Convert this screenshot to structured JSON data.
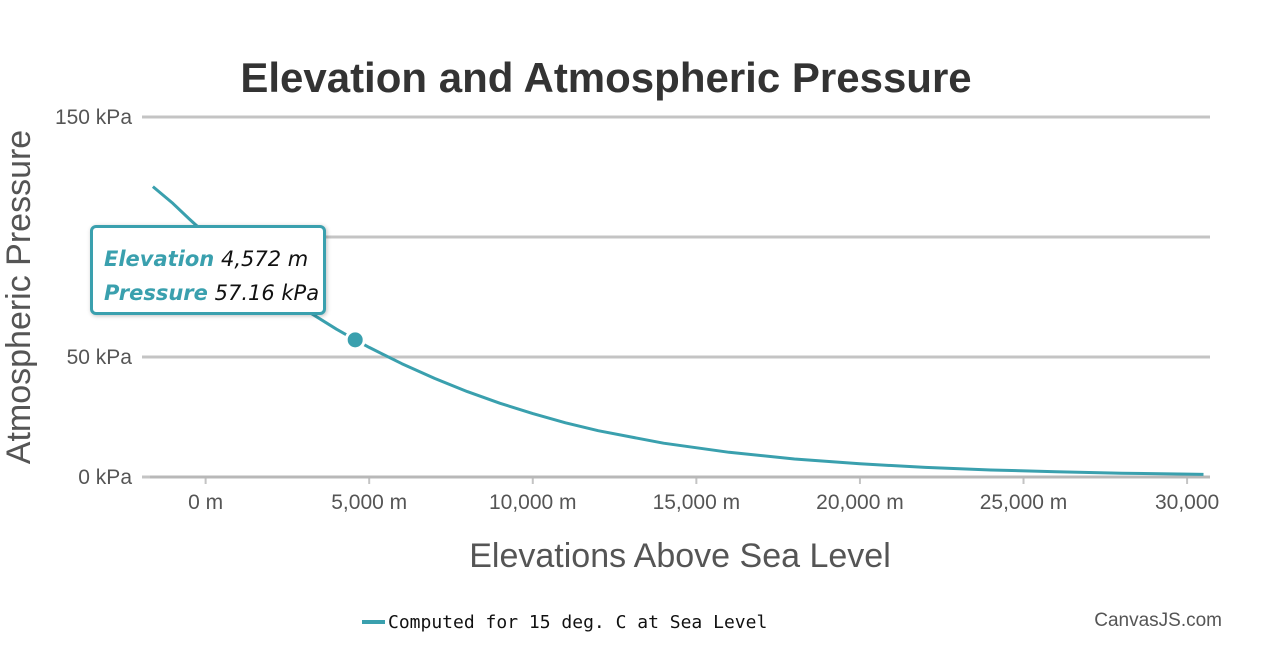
{
  "chart_data": {
    "type": "line",
    "title": "Elevation and Atmospheric Pressure",
    "xlabel": "Elevations Above Sea Level",
    "ylabel": "Atmospheric Pressure",
    "xlim": [
      -1700,
      30700
    ],
    "ylim": [
      0,
      150
    ],
    "x_ticks": [
      0,
      5000,
      10000,
      15000,
      20000,
      25000,
      30000
    ],
    "x_tick_labels": [
      "0 m",
      "5,000 m",
      "10,000 m",
      "15,000 m",
      "20,000 m",
      "25,000 m",
      "30,000"
    ],
    "y_ticks": [
      0,
      50,
      100,
      150
    ],
    "y_tick_labels": [
      "0 kPa",
      "50 kPa",
      "100",
      "150 kPa"
    ],
    "grid": "horizontal",
    "legend_position": "bottom",
    "series": [
      {
        "name": "Computed for 15 deg. C at Sea Level",
        "color": "#3aa0ae",
        "x": [
          -1610,
          -1000,
          -500,
          0,
          500,
          1000,
          1500,
          2000,
          3000,
          4000,
          4572,
          5000,
          6000,
          7000,
          8000,
          9000,
          10000,
          11000,
          12000,
          14000,
          16000,
          18000,
          20000,
          22000,
          24000,
          26000,
          28000,
          30000,
          30500
        ],
        "y": [
          121,
          114,
          107.5,
          101.3,
          95.5,
          89.9,
          84.6,
          79.5,
          70.1,
          61.6,
          57.16,
          54.0,
          47.2,
          41.1,
          35.6,
          30.7,
          26.4,
          22.6,
          19.3,
          14.1,
          10.3,
          7.5,
          5.5,
          4.0,
          2.9,
          2.2,
          1.6,
          1.2,
          1.1
        ]
      }
    ],
    "highlight_point": {
      "x": 4572,
      "y": 57.16
    }
  },
  "tooltip": {
    "elevation_label": "Elevation",
    "elevation_value": "4,572 m",
    "pressure_label": "Pressure",
    "pressure_value": "57.16 kPa"
  },
  "credit": "CanvasJS.com"
}
